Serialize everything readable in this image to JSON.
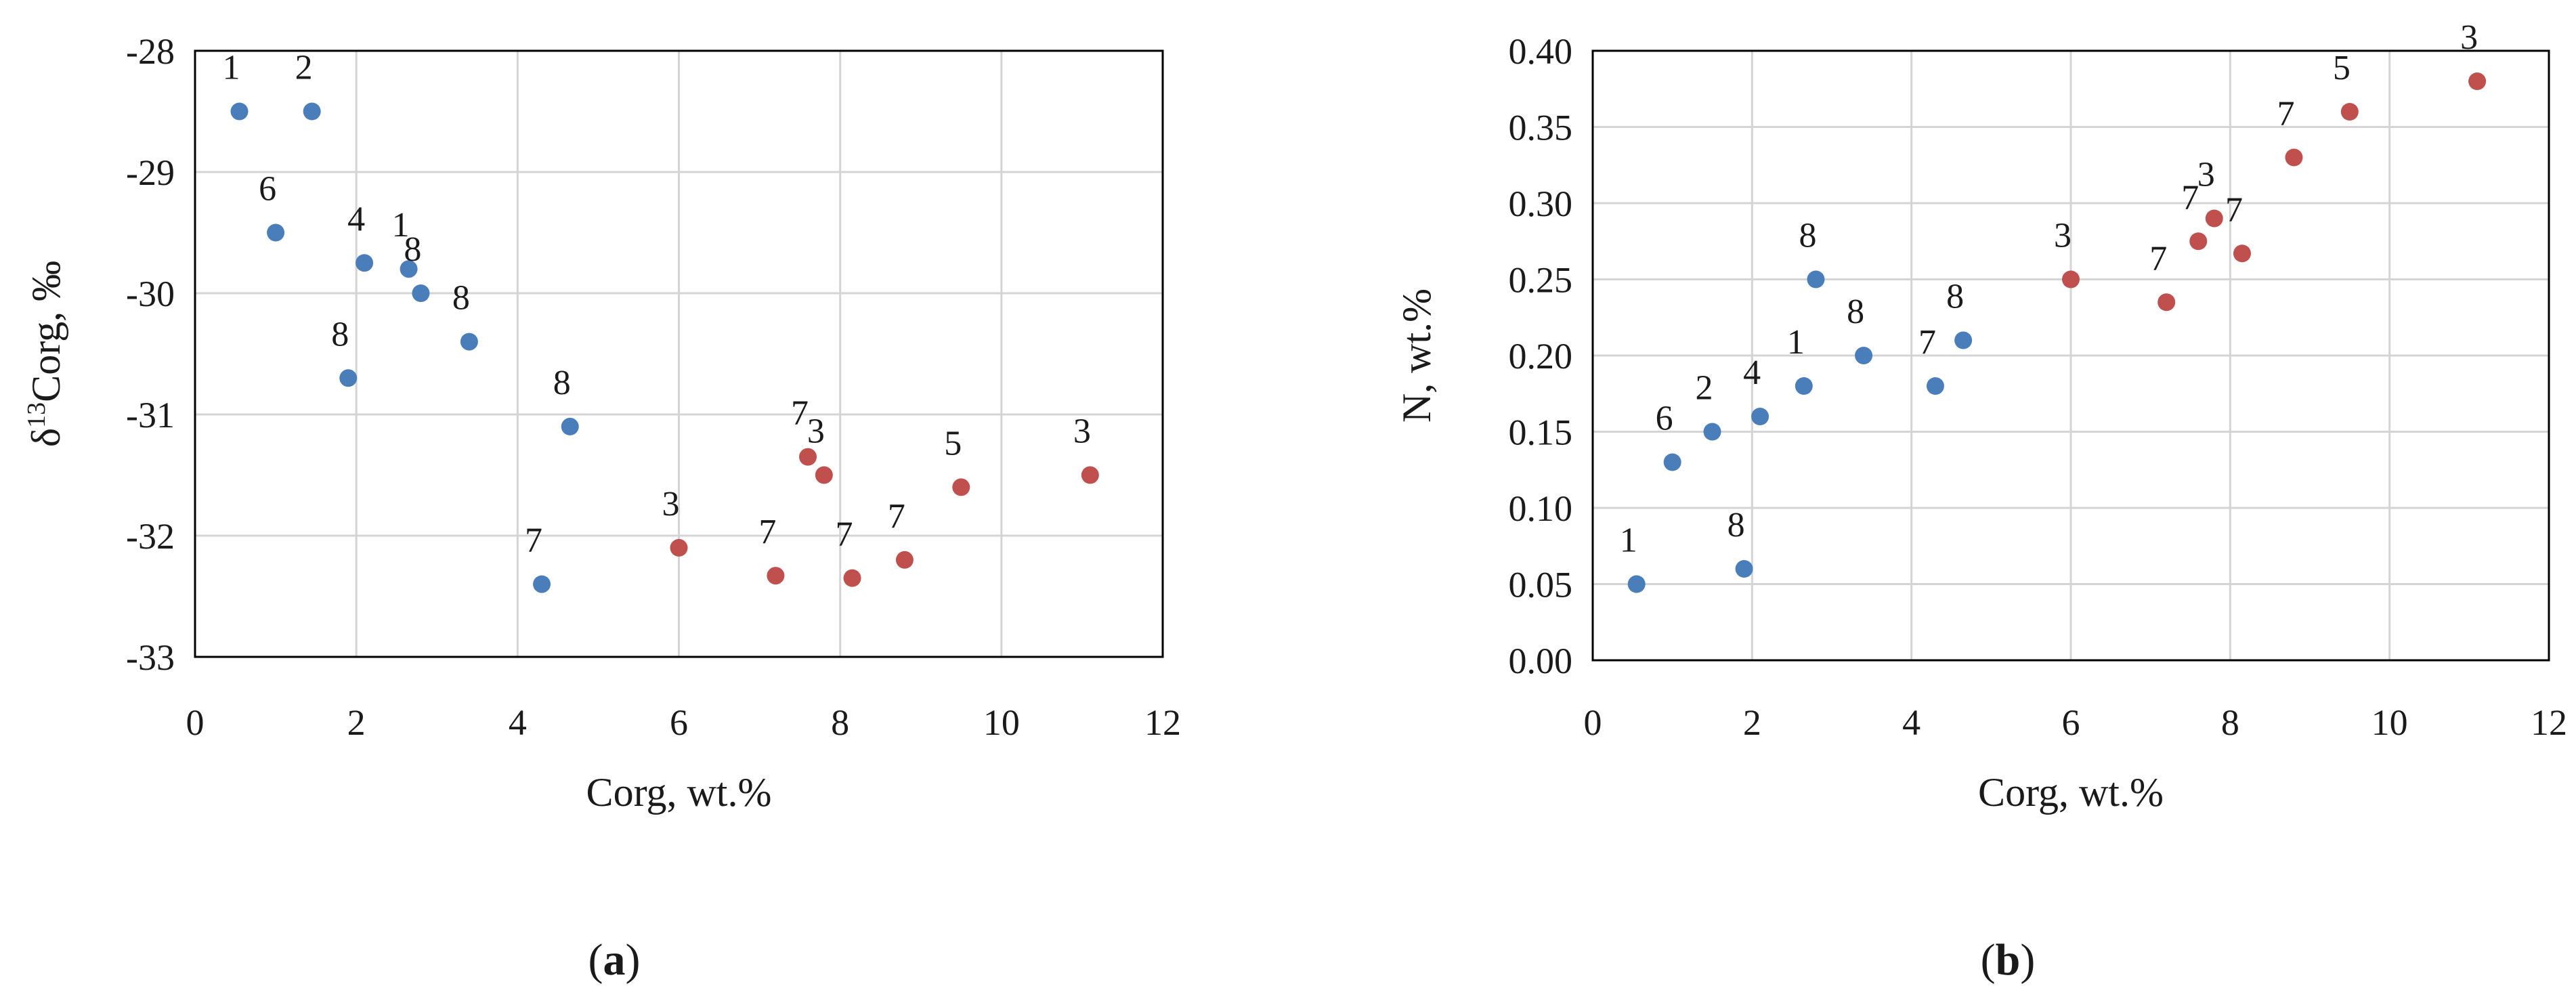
{
  "colors": {
    "series_1": "#4a7ebb",
    "series_2": "#c0504d",
    "grid": "#d4d4d4",
    "axis": "#000000"
  },
  "chart_data": [
    {
      "type": "scatter",
      "panel_letter": "a",
      "xlabel": "Corg, wt.%",
      "ylabel_prefix": "δ",
      "ylabel_sup": "13",
      "ylabel_suffix": "Corg, ‰",
      "xlim": [
        0,
        12
      ],
      "ylim": [
        -33,
        -28
      ],
      "xticks": [
        0,
        2,
        4,
        6,
        8,
        10,
        12
      ],
      "yticks": [
        -33,
        -32,
        -31,
        -30,
        -29,
        -28
      ],
      "grid": true,
      "series": [
        {
          "color_key": "series_1",
          "points": [
            {
              "x": 0.55,
              "y": -28.5,
              "label": "1"
            },
            {
              "x": 1.45,
              "y": -28.5,
              "label": "2"
            },
            {
              "x": 1.0,
              "y": -29.5,
              "label": "6"
            },
            {
              "x": 2.1,
              "y": -29.75,
              "label": "4"
            },
            {
              "x": 2.65,
              "y": -29.8,
              "label": "1"
            },
            {
              "x": 2.8,
              "y": -30.0,
              "label": "8"
            },
            {
              "x": 3.4,
              "y": -30.4,
              "label": "8"
            },
            {
              "x": 1.9,
              "y": -30.7,
              "label": "8"
            },
            {
              "x": 4.65,
              "y": -31.1,
              "label": "8"
            },
            {
              "x": 4.3,
              "y": -32.4,
              "label": "7"
            }
          ]
        },
        {
          "color_key": "series_2",
          "points": [
            {
              "x": 6.0,
              "y": -32.1,
              "label": "3"
            },
            {
              "x": 7.2,
              "y": -32.33,
              "label": "7"
            },
            {
              "x": 7.6,
              "y": -31.35,
              "label": "7"
            },
            {
              "x": 7.8,
              "y": -31.5,
              "label": "3"
            },
            {
              "x": 8.15,
              "y": -32.35,
              "label": "7"
            },
            {
              "x": 8.8,
              "y": -32.2,
              "label": "7"
            },
            {
              "x": 9.5,
              "y": -31.6,
              "label": "5"
            },
            {
              "x": 11.1,
              "y": -31.5,
              "label": "3"
            }
          ]
        }
      ]
    },
    {
      "type": "scatter",
      "panel_letter": "b",
      "xlabel": "Corg, wt.%",
      "ylabel": "N, wt.%",
      "xlim": [
        0,
        12
      ],
      "ylim": [
        0,
        0.4
      ],
      "xticks": [
        0,
        2,
        4,
        6,
        8,
        10,
        12
      ],
      "yticks": [
        0.0,
        0.05,
        0.1,
        0.15,
        0.2,
        0.25,
        0.3,
        0.35,
        0.4
      ],
      "grid": true,
      "series": [
        {
          "color_key": "series_1",
          "points": [
            {
              "x": 0.55,
              "y": 0.05,
              "label": "1"
            },
            {
              "x": 1.0,
              "y": 0.13,
              "label": "6"
            },
            {
              "x": 1.5,
              "y": 0.15,
              "label": "2"
            },
            {
              "x": 1.9,
              "y": 0.06,
              "label": "8"
            },
            {
              "x": 2.1,
              "y": 0.16,
              "label": "4"
            },
            {
              "x": 2.65,
              "y": 0.18,
              "label": "1"
            },
            {
              "x": 2.8,
              "y": 0.25,
              "label": "8"
            },
            {
              "x": 3.4,
              "y": 0.2,
              "label": "8"
            },
            {
              "x": 4.3,
              "y": 0.18,
              "label": "7"
            },
            {
              "x": 4.65,
              "y": 0.21,
              "label": "8"
            }
          ]
        },
        {
          "color_key": "series_2",
          "points": [
            {
              "x": 6.0,
              "y": 0.25,
              "label": "3"
            },
            {
              "x": 7.2,
              "y": 0.235,
              "label": "7"
            },
            {
              "x": 7.6,
              "y": 0.275,
              "label": "7"
            },
            {
              "x": 7.8,
              "y": 0.29,
              "label": "3"
            },
            {
              "x": 8.15,
              "y": 0.267,
              "label": "7"
            },
            {
              "x": 8.8,
              "y": 0.33,
              "label": "7"
            },
            {
              "x": 9.5,
              "y": 0.36,
              "label": "5"
            },
            {
              "x": 11.1,
              "y": 0.38,
              "label": "3"
            }
          ]
        }
      ]
    }
  ]
}
